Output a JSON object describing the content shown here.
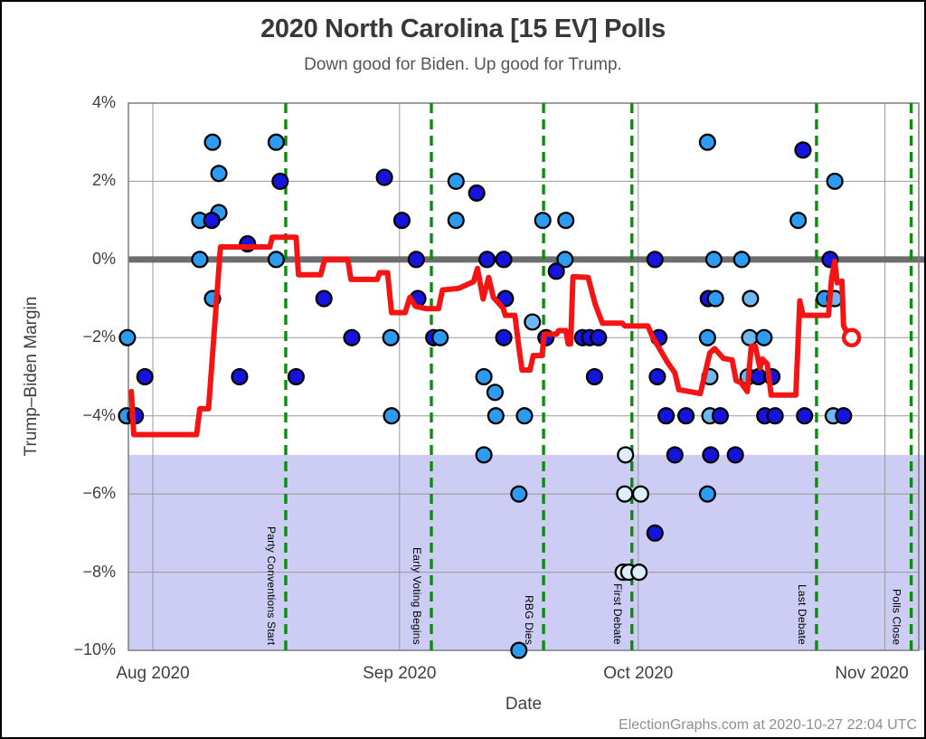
{
  "title": "2020 North Carolina [15 EV] Polls",
  "subtitle": "Down good for Biden. Up good for Trump.",
  "footer": "ElectionGraphs.com at 2020-10-27 22:04 UTC",
  "colors": {
    "dot_navy": "#1414dd",
    "dot_blue": "#2b9cf2",
    "dot_light": "#6fb7ef",
    "dot_pale": "#ddeefb",
    "dot_stroke": "#000000",
    "trend_red": "#f41414",
    "event_green": "#0a8f0a",
    "biden_band_purple": "#ccccf4",
    "zero_band_gray": "#6e6e6e",
    "gridline_gray": "#999999",
    "border_gray": "#7d7d7d"
  },
  "chart_data": {
    "type": "scatter",
    "title": "2020 North Carolina [15 EV] Polls",
    "subtitle": "Down good for Biden. Up good for Trump.",
    "xlabel": "Date",
    "ylabel": "Trump–Biden Margin",
    "x_unit": "days since Aug 1 2020",
    "xlim": [
      -3.07,
      96.25
    ],
    "ylim": [
      -10,
      4
    ],
    "grid": true,
    "y_ticks": [
      {
        "v": 4,
        "label": "4%"
      },
      {
        "v": 2,
        "label": "2%"
      },
      {
        "v": 0,
        "label": "0%"
      },
      {
        "v": -2,
        "label": "−2%"
      },
      {
        "v": -4,
        "label": "−4%"
      },
      {
        "v": -6,
        "label": "−6%"
      },
      {
        "v": -8,
        "label": "−8%"
      },
      {
        "v": -10,
        "label": "−10%"
      }
    ],
    "x_ticks": [
      {
        "day": 0,
        "label": "Aug 2020"
      },
      {
        "day": 31,
        "label": "Sep 2020"
      },
      {
        "day": 61,
        "label": "Oct 2020"
      },
      {
        "day": 92,
        "label": "Nov 2020"
      }
    ],
    "zero_line": 0,
    "biden_win_band": {
      "from": -10,
      "to": -5
    },
    "events": [
      {
        "day": 16.7,
        "label": "Party Conventions Start"
      },
      {
        "day": 35.0,
        "label": "Early Voting Begins"
      },
      {
        "day": 49.1,
        "label": "RBG Dies"
      },
      {
        "day": 60.2,
        "label": "First Debate"
      },
      {
        "day": 83.4,
        "label": "Last Debate"
      },
      {
        "day": 95.3,
        "label": "Polls Close"
      }
    ],
    "polls": [
      [
        7.5,
        3,
        "b"
      ],
      [
        15.5,
        3,
        "b"
      ],
      [
        69.7,
        3,
        "b"
      ],
      [
        81.7,
        2.8,
        "n"
      ],
      [
        8.3,
        2.2,
        "b"
      ],
      [
        29.1,
        2.1,
        "n"
      ],
      [
        16,
        2,
        "n"
      ],
      [
        38.1,
        2,
        "b"
      ],
      [
        85.7,
        2,
        "b"
      ],
      [
        40.7,
        1.7,
        "n"
      ],
      [
        8.3,
        1.2,
        "b"
      ],
      [
        5.9,
        1,
        "b"
      ],
      [
        7.4,
        1,
        "n"
      ],
      [
        31.3,
        1,
        "n"
      ],
      [
        38.1,
        1,
        "b"
      ],
      [
        49,
        1,
        "b"
      ],
      [
        51.9,
        1,
        "b"
      ],
      [
        81.1,
        1,
        "b"
      ],
      [
        11.9,
        0.4,
        "n"
      ],
      [
        5.9,
        0,
        "b"
      ],
      [
        15.5,
        0,
        "b"
      ],
      [
        33.1,
        0,
        "n"
      ],
      [
        42,
        0,
        "n"
      ],
      [
        44.1,
        0,
        "n"
      ],
      [
        51.8,
        0,
        "b"
      ],
      [
        63.1,
        0,
        "n"
      ],
      [
        70.5,
        0,
        "b"
      ],
      [
        74,
        0,
        "b"
      ],
      [
        85.1,
        0,
        "n"
      ],
      [
        50.7,
        -0.3,
        "n"
      ],
      [
        7.5,
        -1,
        "b"
      ],
      [
        21.5,
        -1,
        "n"
      ],
      [
        33.3,
        -1,
        "n"
      ],
      [
        44.3,
        -1,
        "n"
      ],
      [
        69.8,
        -1,
        "n"
      ],
      [
        70.7,
        -1,
        "b"
      ],
      [
        75.1,
        -1,
        "l"
      ],
      [
        84.4,
        -1,
        "b"
      ],
      [
        85.7,
        -1,
        "l"
      ],
      [
        47.7,
        -1.6,
        "l"
      ],
      [
        -3.2,
        -2,
        "b"
      ],
      [
        25,
        -2,
        "n"
      ],
      [
        29.9,
        -2,
        "b"
      ],
      [
        35.3,
        -2,
        "n"
      ],
      [
        36.1,
        -2,
        "b"
      ],
      [
        44.1,
        -2,
        "n"
      ],
      [
        49.4,
        -2,
        "n"
      ],
      [
        54,
        -2,
        "n"
      ],
      [
        54.9,
        -2,
        "n"
      ],
      [
        56,
        -2,
        "n"
      ],
      [
        63.6,
        -2,
        "n"
      ],
      [
        69.7,
        -2,
        "b"
      ],
      [
        75,
        -2,
        "l"
      ],
      [
        76.8,
        -2,
        "b"
      ],
      [
        -1,
        -3,
        "n"
      ],
      [
        10.9,
        -3,
        "n"
      ],
      [
        18,
        -3,
        "n"
      ],
      [
        41.6,
        -3,
        "b"
      ],
      [
        55.5,
        -3,
        "n"
      ],
      [
        63.4,
        -3,
        "n"
      ],
      [
        70,
        -3,
        "l"
      ],
      [
        74.8,
        -3,
        "l"
      ],
      [
        76.1,
        -3,
        "n"
      ],
      [
        77.8,
        -3,
        "n"
      ],
      [
        43,
        -3.4,
        "b"
      ],
      [
        -3.3,
        -4,
        "b"
      ],
      [
        -2.2,
        -4,
        "n"
      ],
      [
        30,
        -4,
        "b"
      ],
      [
        43.1,
        -4,
        "b"
      ],
      [
        46.7,
        -4,
        "b"
      ],
      [
        64.5,
        -4,
        "n"
      ],
      [
        67,
        -4,
        "n"
      ],
      [
        70,
        -4,
        "l"
      ],
      [
        71.3,
        -4,
        "n"
      ],
      [
        76.9,
        -4,
        "n"
      ],
      [
        78.2,
        -4,
        "n"
      ],
      [
        81.9,
        -4,
        "n"
      ],
      [
        85.5,
        -4,
        "l"
      ],
      [
        86.8,
        -4,
        "n"
      ],
      [
        41.6,
        -5,
        "b"
      ],
      [
        59.4,
        -5,
        "p"
      ],
      [
        65.6,
        -5,
        "n"
      ],
      [
        70.1,
        -5,
        "n"
      ],
      [
        73.2,
        -5,
        "n"
      ],
      [
        46,
        -6,
        "b"
      ],
      [
        59.3,
        -6,
        "p"
      ],
      [
        61.3,
        -6,
        "p"
      ],
      [
        69.7,
        -6,
        "b"
      ],
      [
        63.1,
        -7,
        "n"
      ],
      [
        59.1,
        -8,
        "p"
      ],
      [
        59.8,
        -8,
        "p"
      ],
      [
        61.1,
        -8,
        "p"
      ],
      [
        46,
        -10,
        "b"
      ]
    ],
    "average_line": [
      [
        -2.7,
        -3.38
      ],
      [
        -2.4,
        -4.48
      ],
      [
        5.5,
        -4.48
      ],
      [
        5.9,
        -3.82
      ],
      [
        7,
        -3.82
      ],
      [
        8.5,
        0.32
      ],
      [
        14.7,
        0.32
      ],
      [
        15,
        0.57
      ],
      [
        18,
        0.57
      ],
      [
        18.3,
        -0.39
      ],
      [
        21.1,
        -0.39
      ],
      [
        21.6,
        0
      ],
      [
        24.5,
        0
      ],
      [
        24.9,
        -0.51
      ],
      [
        28.2,
        -0.51
      ],
      [
        28.5,
        -0.34
      ],
      [
        29.5,
        -0.34
      ],
      [
        30,
        -1.36
      ],
      [
        31.7,
        -1.36
      ],
      [
        32.3,
        -0.97
      ],
      [
        33,
        -1.2
      ],
      [
        34.4,
        -1.26
      ],
      [
        35.9,
        -1.26
      ],
      [
        36.4,
        -0.78
      ],
      [
        38.4,
        -0.74
      ],
      [
        40.3,
        -0.57
      ],
      [
        40.8,
        -0.23
      ],
      [
        41.5,
        -1.01
      ],
      [
        42.2,
        -0.46
      ],
      [
        42.8,
        -0.97
      ],
      [
        44,
        -1.24
      ],
      [
        44.3,
        -1.43
      ],
      [
        45.5,
        -1.43
      ],
      [
        46,
        -2.25
      ],
      [
        46.4,
        -2.83
      ],
      [
        47.4,
        -2.83
      ],
      [
        47.8,
        -2.46
      ],
      [
        48.9,
        -2.46
      ],
      [
        49.2,
        -1.91
      ],
      [
        50.7,
        -1.91
      ],
      [
        51,
        -1.82
      ],
      [
        51.9,
        -1.82
      ],
      [
        52.2,
        -2.16
      ],
      [
        52.5,
        -2.16
      ],
      [
        52.8,
        -0.44
      ],
      [
        54.7,
        -0.46
      ],
      [
        55.6,
        -1.15
      ],
      [
        56.5,
        -1.63
      ],
      [
        59,
        -1.63
      ],
      [
        59.3,
        -1.7
      ],
      [
        62.2,
        -1.7
      ],
      [
        62.8,
        -1.98
      ],
      [
        64.7,
        -2.64
      ],
      [
        65.6,
        -2.9
      ],
      [
        66.1,
        -3.33
      ],
      [
        68.8,
        -3.43
      ],
      [
        70,
        -2.39
      ],
      [
        70.6,
        -2.28
      ],
      [
        71.7,
        -2.53
      ],
      [
        72.8,
        -2.57
      ],
      [
        73.3,
        -3.1
      ],
      [
        73.9,
        -3.15
      ],
      [
        74.7,
        -3.38
      ],
      [
        75.2,
        -2.23
      ],
      [
        75.7,
        -2.21
      ],
      [
        76.3,
        -2.78
      ],
      [
        76.6,
        -2.55
      ],
      [
        77.2,
        -2.67
      ],
      [
        77.7,
        -3.47
      ],
      [
        80.8,
        -3.47
      ],
      [
        81.3,
        -1.06
      ],
      [
        81.7,
        -1.43
      ],
      [
        84.9,
        -1.43
      ],
      [
        85.3,
        -0.48
      ],
      [
        85.7,
        -0.05
      ],
      [
        86,
        -0.6
      ],
      [
        86.6,
        -0.55
      ],
      [
        86.8,
        -1.7
      ],
      [
        87.4,
        -1.93
      ],
      [
        87.8,
        -2
      ]
    ],
    "current_value": {
      "day": 87.8,
      "margin": -2.0
    }
  }
}
